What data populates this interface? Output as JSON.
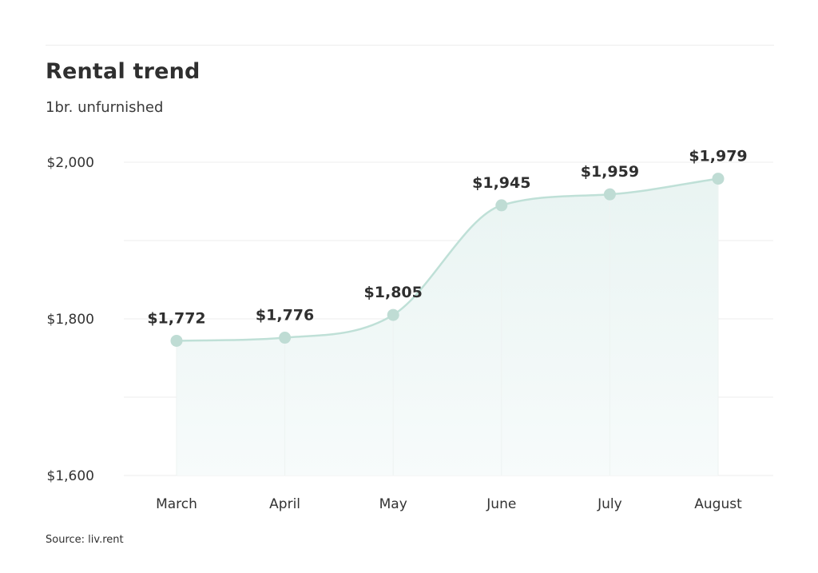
{
  "header": {
    "title": "Rental trend",
    "subtitle": "1br. unfurnished"
  },
  "footer": {
    "source": "Source: liv.rent"
  },
  "colors": {
    "line": "#bfe0d7",
    "marker": "#bfdcd4",
    "area_top": "#e9f4f2",
    "area_bottom": "#f7fbfb",
    "grid": "#ececec"
  },
  "chart_data": {
    "type": "line",
    "title": "Rental trend",
    "subtitle": "1br. unfurnished",
    "categories": [
      "March",
      "April",
      "May",
      "June",
      "July",
      "August"
    ],
    "values": [
      1772,
      1776,
      1805,
      1945,
      1959,
      1979
    ],
    "data_labels": [
      "$1,772",
      "$1,776",
      "$1,805",
      "$1,945",
      "$1,959",
      "$1,979"
    ],
    "ylim": [
      1600,
      2000
    ],
    "y_ticks": [
      1600,
      1800,
      2000
    ],
    "y_tick_labels": [
      "$1,600",
      "$1,800",
      "$2,000"
    ],
    "y_gridlines": [
      1600,
      1700,
      1800,
      1900,
      2000
    ],
    "grid": true,
    "area_fill": true,
    "smooth": true,
    "xlabel": "",
    "ylabel": "",
    "source": "Source: liv.rent"
  }
}
